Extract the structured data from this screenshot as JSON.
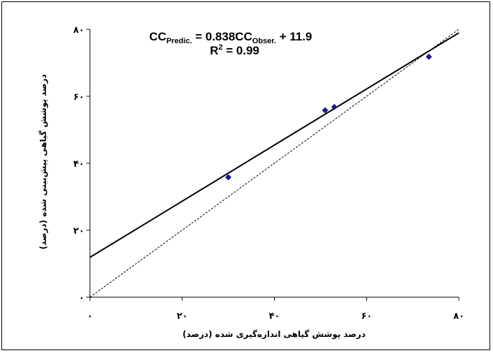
{
  "chart_data": {
    "type": "scatter",
    "x_ticks": [
      "۰",
      "۲۰",
      "۴۰",
      "۶۰",
      "۸۰"
    ],
    "y_ticks": [
      "۰",
      "۲۰",
      "۴۰",
      "۶۰",
      "۸۰"
    ],
    "xlim": [
      0,
      80
    ],
    "ylim": [
      0,
      80
    ],
    "xlabel": "درصد پوشش گیاهی اندازه‌گیری شده (درصد)",
    "ylabel": "درصد پوشش گیاهی پیش‌بینی شده (درصد)",
    "equation": {
      "lhs": "CC",
      "lhs_sub": "Predic.",
      "eq_mid": " = 0.838CC",
      "rhs_sub": "Obser.",
      "eq_tail": " + 11.9",
      "r2_label": "R",
      "r2_sup": "2",
      "r2_value": " = 0.99"
    },
    "points": [
      {
        "x": 30.0,
        "y": 35.8
      },
      {
        "x": 51.0,
        "y": 55.8
      },
      {
        "x": 53.0,
        "y": 56.8
      },
      {
        "x": 73.5,
        "y": 71.8
      }
    ],
    "regression_line": {
      "slope": 0.838,
      "intercept": 11.9,
      "style": "solid"
    },
    "reference_line": {
      "slope": 1,
      "intercept": 0,
      "style": "dashed",
      "label": "1:1"
    },
    "marker_color": "#1a1a8c",
    "grid": false
  }
}
